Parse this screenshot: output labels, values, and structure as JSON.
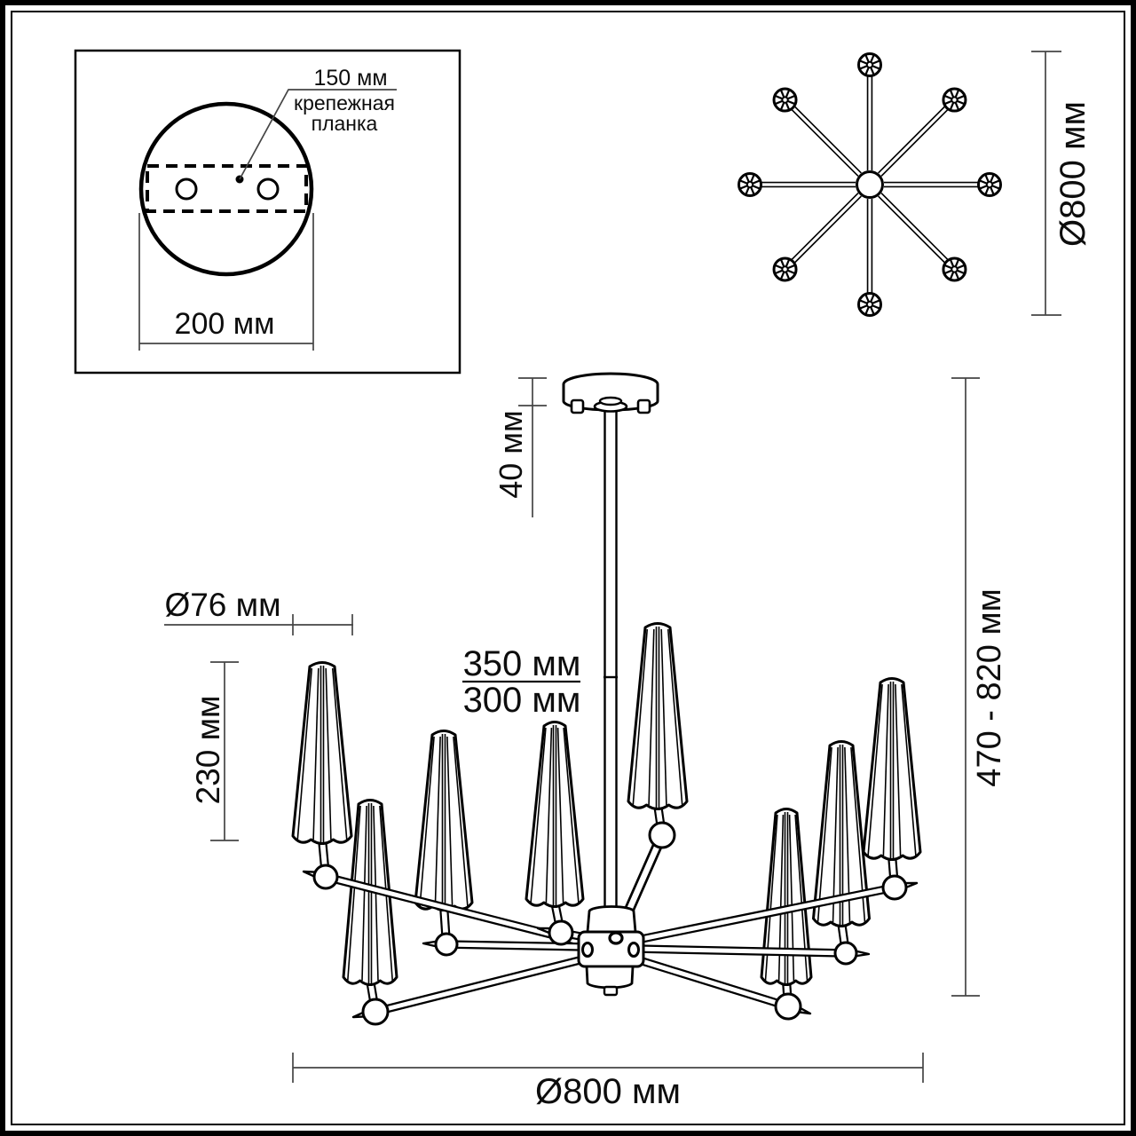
{
  "drawing_title": "chandelier-dimension-drawing",
  "colors": {
    "line": "#000000",
    "dim_line": "#454545",
    "text": "#0d0d0d",
    "background": "#ffffff"
  },
  "inset_detail": {
    "dim_bracket": "150 мм",
    "bracket_label_line1": "крепежная",
    "bracket_label_line2": "планка",
    "dim_canopy_width": "200 мм"
  },
  "top_view": {
    "dim_diameter": "Ø800 мм",
    "arm_count": 8
  },
  "side_view": {
    "dim_canopy_height": "40 мм",
    "dim_rod_long": "350 мм",
    "dim_rod_short": "300 мм",
    "dim_shade_diameter": "Ø76 мм",
    "dim_shade_height": "230 мм",
    "dim_total_height": "470 - 820 мм",
    "dim_diameter": "Ø800 мм",
    "shade_count": 8
  }
}
